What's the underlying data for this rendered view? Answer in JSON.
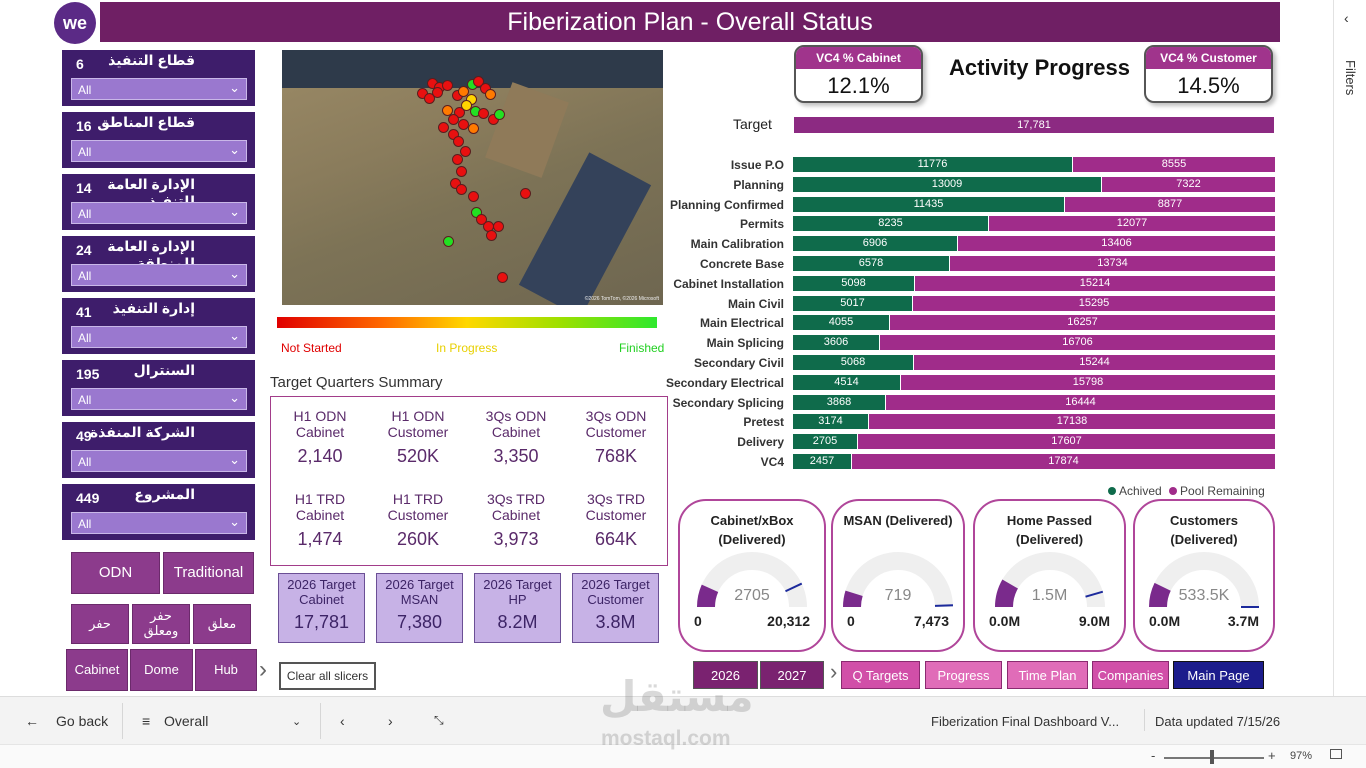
{
  "header": {
    "logo_text": "we",
    "title": "Fiberization Plan - Overall Status"
  },
  "filters_pane": {
    "label": "Filters",
    "collapse_icon": "chevron-left"
  },
  "slicers": [
    {
      "count": "6",
      "label": "قطاع التنفيذ",
      "value": "All"
    },
    {
      "count": "16",
      "label": "قطاع المناطق",
      "value": "All"
    },
    {
      "count": "14",
      "label": "الإدارة العامة للتنفيذ",
      "value": "All"
    },
    {
      "count": "24",
      "label": "الإدارة العامة للمنطقة",
      "value": "All"
    },
    {
      "count": "41",
      "label": "إدارة التنفيذ",
      "value": "All"
    },
    {
      "count": "195",
      "label": "السنترال",
      "value": "All"
    },
    {
      "count": "49",
      "label": "الشركة المنفذة",
      "value": "All"
    },
    {
      "count": "449",
      "label": "المشروع",
      "value": "All"
    }
  ],
  "left_buttons": {
    "odn": "ODN",
    "traditional": "Traditional",
    "hafr": "حفر",
    "hafr_moalaq": "حفر ومعلق",
    "moalaq": "معلق",
    "cabinet": "Cabinet",
    "dome": "Dome",
    "hub": "Hub",
    "clear": "Clear all slicers"
  },
  "map": {
    "credit": "©2026 TomTom, ©2026 Microsoft",
    "legend": {
      "start": "Not Started",
      "mid": "In Progress",
      "end": "Finished"
    },
    "colors": {
      "red": "#e81010",
      "orange": "#ff7a00",
      "yellow": "#ffd400",
      "green": "#22e022"
    }
  },
  "target_quarters": {
    "title": "Target Quarters Summary",
    "items": [
      {
        "label": "H1 ODN Cabinet",
        "value": "2,140"
      },
      {
        "label": "H1 ODN Customer",
        "value": "520K"
      },
      {
        "label": "3Qs ODN Cabinet",
        "value": "3,350"
      },
      {
        "label": "3Qs ODN Customer",
        "value": "768K"
      },
      {
        "label": "H1 TRD Cabinet",
        "value": "1,474"
      },
      {
        "label": "H1 TRD Customer",
        "value": "260K"
      },
      {
        "label": "3Qs TRD Cabinet",
        "value": "3,973"
      },
      {
        "label": "3Qs TRD Customer",
        "value": "664K"
      }
    ]
  },
  "targets_2026": [
    {
      "label": "2026 Target Cabinet",
      "value": "17,781"
    },
    {
      "label": "2026 Target MSAN",
      "value": "7,380"
    },
    {
      "label": "2026 Target HP",
      "value": "8.2M"
    },
    {
      "label": "2026 Target Customer",
      "value": "3.8M"
    }
  ],
  "kpis": {
    "cabinet": {
      "label": "VC4 % Cabinet",
      "value": "12.1%"
    },
    "customer": {
      "label": "VC4 % Customer",
      "value": "14.5%"
    },
    "activity_title": "Activity Progress"
  },
  "chart_data": {
    "type": "bar",
    "orientation": "horizontal-stacked",
    "target": {
      "label": "Target",
      "value": 17781,
      "display": "17,781"
    },
    "categories": [
      "Issue P.O",
      "Planning",
      "Planning Confirmed",
      "Permits",
      "Main Calibration",
      "Concrete Base",
      "Cabinet Installation",
      "Main Civil",
      "Main Electrical",
      "Main Splicing",
      "Secondary Civil",
      "Secondary Electrical",
      "Secondary Splicing",
      "Pretest",
      "Delivery",
      "VC4"
    ],
    "series": [
      {
        "name": "Achived",
        "color": "#0f6b4b",
        "values": [
          11776,
          13009,
          11435,
          8235,
          6906,
          6578,
          5098,
          5017,
          4055,
          3606,
          5068,
          4514,
          3868,
          3174,
          2705,
          2457
        ]
      },
      {
        "name": "Pool Remaining",
        "color": "#a02c8a",
        "values": [
          8555,
          7322,
          8877,
          12077,
          13406,
          13734,
          15214,
          15295,
          16257,
          16706,
          15244,
          15798,
          16444,
          17138,
          17607,
          17874
        ]
      }
    ],
    "legend": "bottom-right"
  },
  "gauges": [
    {
      "title": "Cabinet/xBox (Delivered)",
      "value": 2705,
      "value_display": "2705",
      "min": "0",
      "max": "20,312",
      "max_num": 20312,
      "target_frac": 0.86
    },
    {
      "title": "MSAN (Delivered)",
      "value": 719,
      "value_display": "719",
      "min": "0",
      "max": "7,473",
      "max_num": 7473,
      "target_frac": 0.99
    },
    {
      "title": "Home Passed (Delivered)",
      "value": 1.5,
      "value_display": "1.5M",
      "min": "0.0M",
      "max": "9.0M",
      "max_num": 9.0,
      "target_frac": 0.91
    },
    {
      "title": "Customers (Delivered)",
      "value": 533.5,
      "value_display": "533.5K",
      "min": "0.0M",
      "max": "3.7M",
      "max_num": 3700,
      "target_frac": 1.0
    }
  ],
  "nav": {
    "y2026": "2026",
    "y2027": "2027",
    "q_targets": "Q Targets",
    "progress": "Progress",
    "time_plan": "Time Plan",
    "companies": "Companies",
    "main_page": "Main Page"
  },
  "statusbar": {
    "go_back": "Go back",
    "page": "Overall",
    "report": "Fiberization Final Dashboard V...",
    "updated": "Data updated 7/15/26",
    "zoom": "97%"
  },
  "watermark": {
    "text": "مستقل",
    "sub": "mostaql.com"
  }
}
